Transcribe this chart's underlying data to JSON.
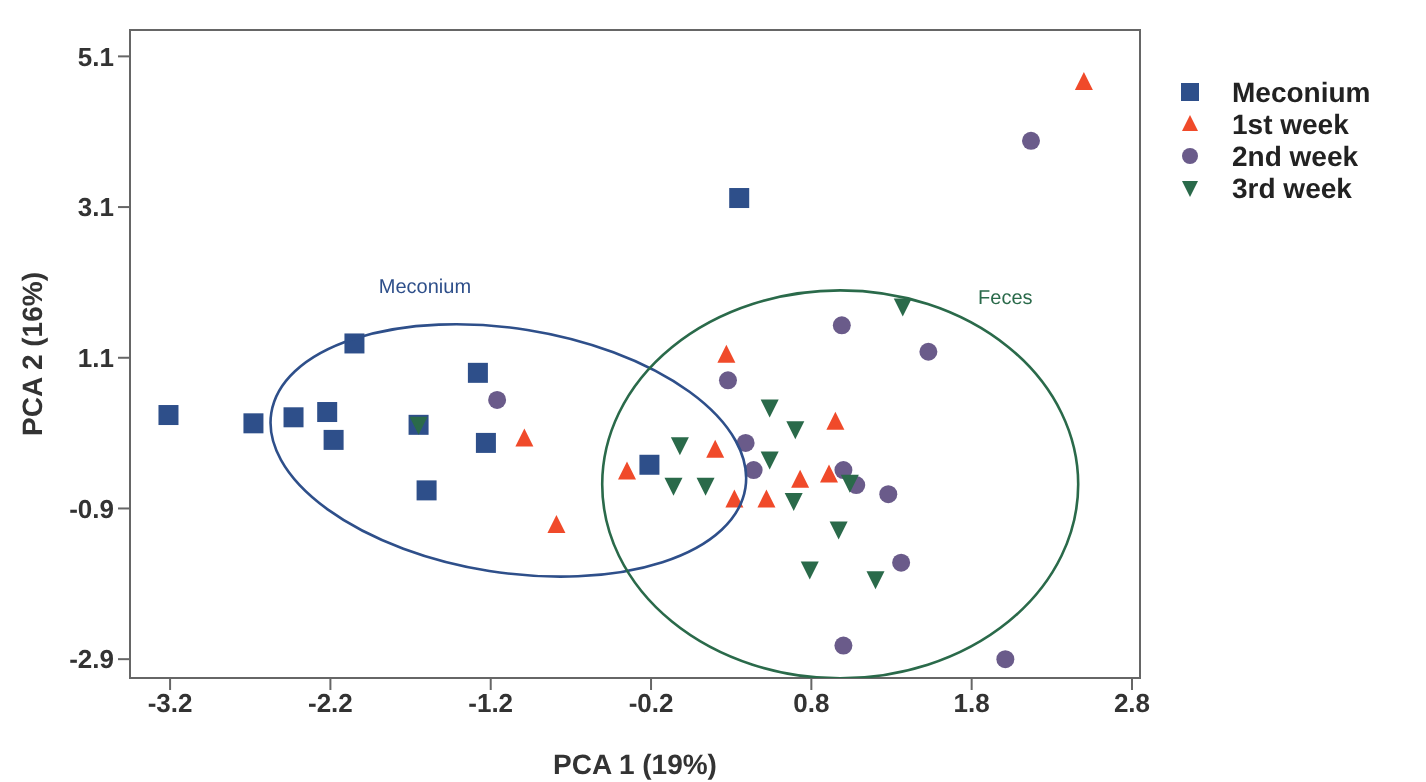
{
  "chart_data": {
    "type": "scatter",
    "xlabel": "PCA 1 (19%)",
    "ylabel": "PCA 2 (16%)",
    "xlim": [
      -3.45,
      2.85
    ],
    "xticks": [
      -3.2,
      -2.2,
      -1.2,
      -0.2,
      0.8,
      1.8,
      2.8
    ],
    "ylim": [
      -3.15,
      5.45
    ],
    "yticks": [
      -2.9,
      -0.9,
      1.1,
      3.1,
      5.1
    ],
    "grid": false,
    "legend": "right",
    "annotations": [
      "Meconium",
      "Feces"
    ],
    "series": [
      {
        "name": "Meconium",
        "color": "#2e4f8a",
        "marker": "square",
        "x": [
          -3.21,
          -2.68,
          -2.43,
          -2.22,
          -2.18,
          -2.05,
          -1.65,
          -1.28,
          -1.23,
          -1.6,
          0.35,
          -0.21
        ],
        "values": [
          0.34,
          0.23,
          0.31,
          0.38,
          0.01,
          1.29,
          0.21,
          0.9,
          -0.03,
          -0.66,
          3.22,
          -0.32
        ]
      },
      {
        "name": "1st week",
        "color": "#f04a2a",
        "marker": "triangle",
        "x": [
          -0.99,
          -0.79,
          -0.35,
          2.5,
          0.27,
          0.95,
          0.2,
          0.73,
          0.91,
          0.32,
          0.52
        ],
        "values": [
          0.03,
          -1.12,
          -0.41,
          4.76,
          1.14,
          0.25,
          -0.12,
          -0.52,
          -0.45,
          -0.78,
          -0.78
        ]
      },
      {
        "name": "2nd week",
        "color": "#6a5b8a",
        "marker": "circle",
        "x": [
          -1.16,
          2.17,
          0.99,
          1.53,
          0.28,
          0.39,
          0.44,
          1.0,
          1.08,
          1.28,
          1.36,
          1.0,
          2.01
        ],
        "values": [
          0.54,
          3.98,
          1.53,
          1.18,
          0.8,
          -0.03,
          -0.39,
          -0.39,
          -0.59,
          -0.71,
          -1.62,
          -2.72,
          -2.9
        ]
      },
      {
        "name": "3rd week",
        "color": "#2a6a4a",
        "marker": "triangle-down",
        "x": [
          -1.65,
          1.37,
          0.54,
          0.7,
          -0.02,
          0.54,
          -0.06,
          0.14,
          0.69,
          1.04,
          0.97,
          0.79,
          1.2
        ],
        "values": [
          0.21,
          1.78,
          0.44,
          0.15,
          -0.06,
          -0.25,
          -0.6,
          -0.6,
          -0.8,
          -0.56,
          -1.18,
          -1.71,
          -1.84
        ]
      }
    ]
  }
}
